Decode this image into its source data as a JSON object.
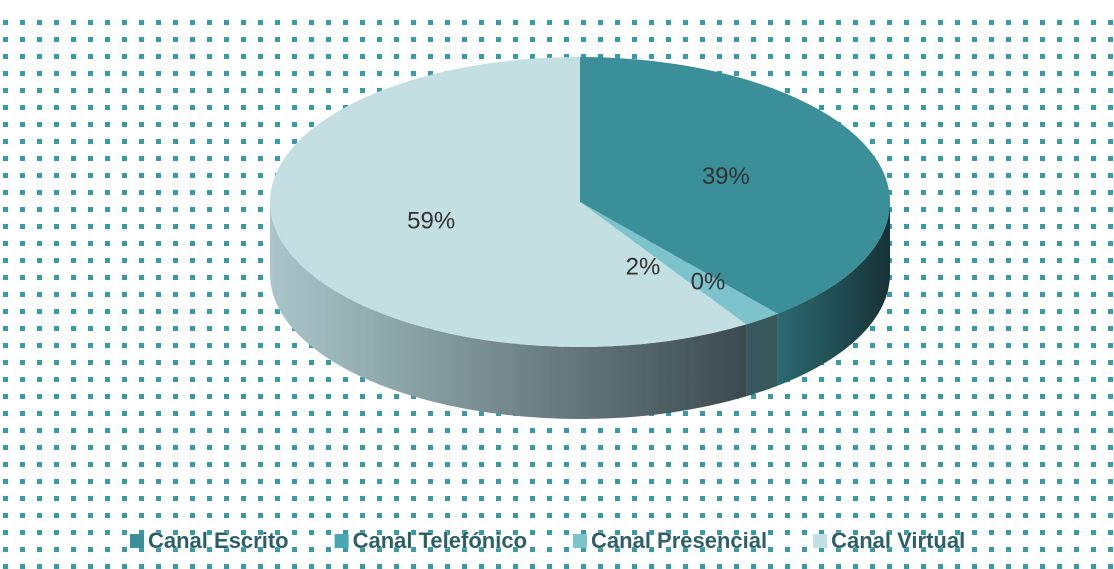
{
  "chart_data": {
    "type": "pie3d",
    "categories": [
      "Canal Escrito",
      "Canal Telefónico",
      "Canal Presencial",
      "Canal Virtual"
    ],
    "values": [
      39,
      0,
      2,
      59
    ],
    "value_labels": [
      "39%",
      "0%",
      "2%",
      "59%"
    ],
    "colors": [
      "#3a8f98",
      "#4aa6b2",
      "#7cc3cc",
      "#c4dfe2"
    ],
    "legend": "bottom"
  }
}
